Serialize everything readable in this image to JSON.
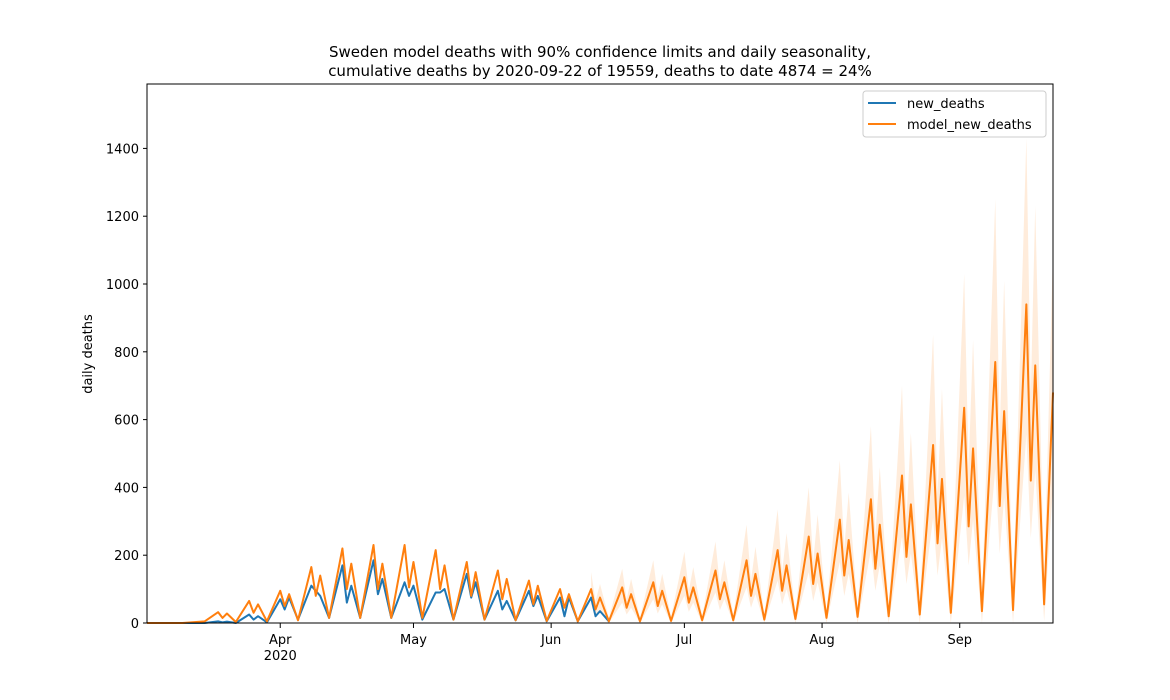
{
  "chart_data": {
    "type": "line",
    "title": [
      "Sweden model deaths with 90% confidence limits and daily seasonality,",
      "cumulative deaths by 2020-09-22 of 19559, deaths to date 4874 = 24%"
    ],
    "y_label": "daily deaths",
    "x_year_label": "2020",
    "xlim": [
      "2020-03-02",
      "2020-09-22"
    ],
    "xticks": [
      {
        "value": "2020-04-01",
        "label": "Apr"
      },
      {
        "value": "2020-05-01",
        "label": "May"
      },
      {
        "value": "2020-06-01",
        "label": "Jun"
      },
      {
        "value": "2020-07-01",
        "label": "Jul"
      },
      {
        "value": "2020-08-01",
        "label": "Aug"
      },
      {
        "value": "2020-09-01",
        "label": "Sep"
      }
    ],
    "ylim": [
      0,
      1590
    ],
    "yticks": [
      0,
      200,
      400,
      600,
      800,
      1000,
      1200,
      1400
    ],
    "legend": "upper right",
    "x": [
      "2020-03-02",
      "2020-03-10",
      "2020-03-15",
      "2020-03-18",
      "2020-03-19",
      "2020-03-20",
      "2020-03-22",
      "2020-03-25",
      "2020-03-26",
      "2020-03-27",
      "2020-03-29",
      "2020-04-01",
      "2020-04-02",
      "2020-04-03",
      "2020-04-05",
      "2020-04-08",
      "2020-04-09",
      "2020-04-10",
      "2020-04-12",
      "2020-04-15",
      "2020-04-16",
      "2020-04-17",
      "2020-04-19",
      "2020-04-22",
      "2020-04-23",
      "2020-04-24",
      "2020-04-26",
      "2020-04-29",
      "2020-04-30",
      "2020-05-01",
      "2020-05-03",
      "2020-05-06",
      "2020-05-07",
      "2020-05-08",
      "2020-05-10",
      "2020-05-13",
      "2020-05-14",
      "2020-05-15",
      "2020-05-17",
      "2020-05-20",
      "2020-05-21",
      "2020-05-22",
      "2020-05-24",
      "2020-05-27",
      "2020-05-28",
      "2020-05-29",
      "2020-05-31",
      "2020-06-03",
      "2020-06-04",
      "2020-06-05",
      "2020-06-07",
      "2020-06-10",
      "2020-06-11",
      "2020-06-12",
      "2020-06-14",
      "2020-06-17",
      "2020-06-18",
      "2020-06-19",
      "2020-06-21",
      "2020-06-24",
      "2020-06-25",
      "2020-06-26",
      "2020-06-28",
      "2020-07-01",
      "2020-07-02",
      "2020-07-03",
      "2020-07-05",
      "2020-07-08",
      "2020-07-09",
      "2020-07-10",
      "2020-07-12",
      "2020-07-15",
      "2020-07-16",
      "2020-07-17",
      "2020-07-19",
      "2020-07-22",
      "2020-07-23",
      "2020-07-24",
      "2020-07-26",
      "2020-07-29",
      "2020-07-30",
      "2020-07-31",
      "2020-08-02",
      "2020-08-05",
      "2020-08-06",
      "2020-08-07",
      "2020-08-09",
      "2020-08-12",
      "2020-08-13",
      "2020-08-14",
      "2020-08-16",
      "2020-08-19",
      "2020-08-20",
      "2020-08-21",
      "2020-08-23",
      "2020-08-26",
      "2020-08-27",
      "2020-08-28",
      "2020-08-30",
      "2020-09-02",
      "2020-09-03",
      "2020-09-04",
      "2020-09-06",
      "2020-09-09",
      "2020-09-10",
      "2020-09-11",
      "2020-09-13",
      "2020-09-16",
      "2020-09-17",
      "2020-09-18",
      "2020-09-20",
      "2020-09-22"
    ],
    "series": [
      {
        "name": "new_deaths",
        "color": "#1f77b4",
        "values": [
          0,
          0,
          0,
          5,
          2,
          4,
          0,
          25,
          10,
          20,
          2,
          70,
          40,
          75,
          10,
          110,
          95,
          80,
          15,
          170,
          60,
          110,
          15,
          185,
          85,
          130,
          15,
          120,
          80,
          110,
          10,
          90,
          90,
          100,
          10,
          145,
          75,
          120,
          10,
          95,
          40,
          65,
          8,
          95,
          50,
          80,
          5,
          75,
          20,
          75,
          5,
          75,
          20,
          35,
          5,
          null,
          null,
          null,
          null,
          null,
          null,
          null,
          null,
          null,
          null,
          null,
          null,
          null,
          null,
          null,
          null,
          null,
          null,
          null,
          null,
          null,
          null,
          null,
          null,
          null,
          null,
          null,
          null,
          null,
          null,
          null,
          null,
          null,
          null,
          null,
          null,
          null,
          null,
          null,
          null,
          null,
          null,
          null,
          null,
          null,
          null,
          null,
          null,
          null,
          null,
          null,
          null,
          null,
          null,
          null,
          null,
          null
        ]
      },
      {
        "name": "model_new_deaths",
        "color": "#ff7f0e",
        "values": [
          0,
          0,
          5,
          32,
          15,
          28,
          3,
          65,
          30,
          55,
          5,
          95,
          50,
          85,
          8,
          165,
          80,
          140,
          15,
          220,
          100,
          175,
          15,
          230,
          100,
          175,
          15,
          230,
          105,
          180,
          15,
          215,
          100,
          170,
          10,
          180,
          80,
          150,
          10,
          155,
          70,
          130,
          8,
          125,
          55,
          110,
          6,
          100,
          45,
          85,
          5,
          100,
          40,
          75,
          5,
          105,
          45,
          85,
          5,
          120,
          50,
          95,
          6,
          135,
          60,
          105,
          8,
          155,
          70,
          120,
          8,
          185,
          80,
          145,
          10,
          215,
          95,
          170,
          12,
          255,
          115,
          205,
          15,
          305,
          140,
          245,
          18,
          365,
          160,
          290,
          20,
          435,
          195,
          350,
          25,
          525,
          235,
          425,
          30,
          635,
          285,
          515,
          35,
          770,
          345,
          625,
          38,
          940,
          420,
          760,
          55,
          680
        ]
      }
    ],
    "band": {
      "color": "#ff7f0e",
      "upper": [
        null,
        null,
        null,
        null,
        null,
        null,
        null,
        null,
        null,
        null,
        null,
        null,
        null,
        null,
        null,
        null,
        null,
        null,
        null,
        null,
        null,
        null,
        null,
        null,
        null,
        null,
        null,
        null,
        null,
        null,
        null,
        null,
        null,
        null,
        null,
        null,
        null,
        null,
        null,
        null,
        null,
        null,
        null,
        null,
        null,
        null,
        null,
        null,
        null,
        null,
        null,
        150,
        65,
        115,
        15,
        160,
        70,
        130,
        15,
        185,
        80,
        145,
        18,
        210,
        95,
        165,
        20,
        240,
        110,
        185,
        22,
        290,
        125,
        225,
        25,
        335,
        150,
        265,
        30,
        400,
        180,
        320,
        35,
        480,
        220,
        385,
        40,
        580,
        255,
        460,
        45,
        700,
        310,
        560,
        55,
        850,
        380,
        690,
        65,
        1030,
        460,
        835,
        75,
        1250,
        560,
        1010,
        80,
        1430,
        680,
        1230,
        120,
        1100
      ],
      "lower": [
        null,
        null,
        null,
        null,
        null,
        null,
        null,
        null,
        null,
        null,
        null,
        null,
        null,
        null,
        null,
        null,
        null,
        null,
        null,
        null,
        null,
        null,
        null,
        null,
        null,
        null,
        null,
        null,
        null,
        null,
        null,
        null,
        null,
        null,
        null,
        null,
        null,
        null,
        null,
        null,
        null,
        null,
        null,
        null,
        null,
        null,
        null,
        null,
        null,
        null,
        null,
        55,
        20,
        40,
        0,
        60,
        25,
        45,
        0,
        70,
        28,
        55,
        0,
        80,
        33,
        60,
        0,
        90,
        38,
        70,
        0,
        105,
        45,
        85,
        0,
        125,
        55,
        100,
        0,
        150,
        65,
        120,
        0,
        180,
        80,
        145,
        0,
        215,
        95,
        170,
        0,
        255,
        115,
        205,
        0,
        310,
        140,
        250,
        0,
        375,
        170,
        305,
        0,
        455,
        205,
        370,
        0,
        555,
        250,
        450,
        5,
        400
      ]
    }
  }
}
